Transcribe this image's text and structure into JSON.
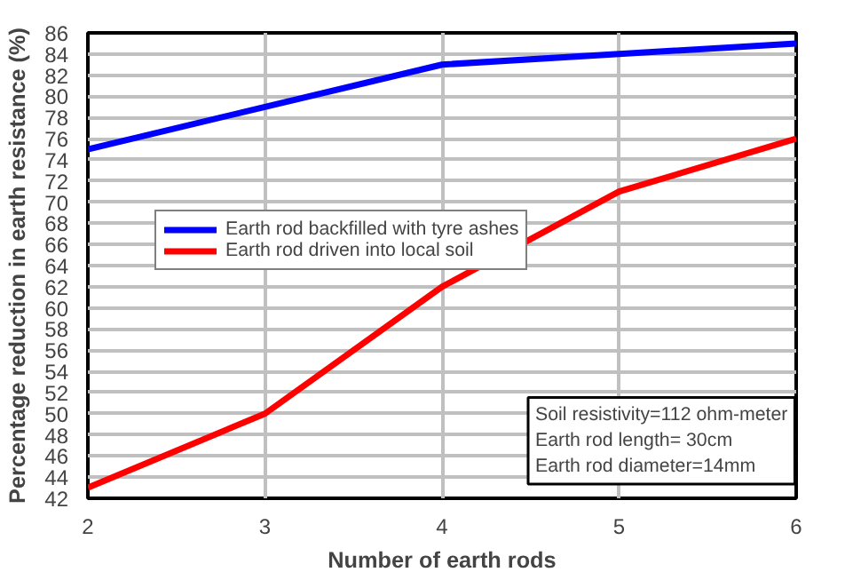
{
  "chart_data": {
    "type": "line",
    "xlabel": "Number of earth rods",
    "ylabel": "Percentage reduction in earth resistance (%)",
    "x": [
      2,
      3,
      4,
      5,
      6
    ],
    "series": [
      {
        "name": "Earth rod backfilled with tyre ashes",
        "color": "#0000ff",
        "values": [
          75,
          79,
          83,
          84,
          85
        ]
      },
      {
        "name": "Earth rod driven into local soil",
        "color": "#ff0000",
        "values": [
          43,
          50,
          62,
          71,
          76
        ]
      }
    ],
    "xlim": [
      2,
      6
    ],
    "xticks": [
      2,
      3,
      4,
      5,
      6
    ],
    "ylim": [
      42,
      86
    ],
    "yticks": [
      42,
      44,
      46,
      48,
      50,
      52,
      54,
      56,
      58,
      60,
      62,
      64,
      66,
      68,
      70,
      72,
      74,
      76,
      78,
      80,
      82,
      84,
      86
    ],
    "grid": true,
    "legend": "left",
    "marker": "none",
    "line_style": "solid",
    "annotations": [
      "Soil resistivity=112 ohm-meter",
      "Earth rod length= 30cm",
      "Earth rod diameter=14mm"
    ]
  }
}
